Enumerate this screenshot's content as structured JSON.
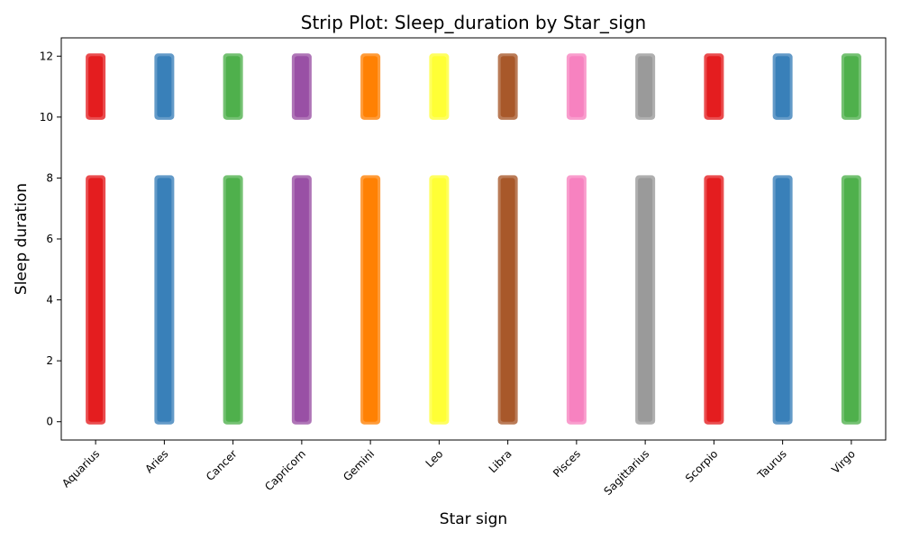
{
  "chart_data": {
    "type": "scatter",
    "subtype": "strip",
    "title": "Strip Plot: Sleep_duration by Star_sign",
    "xlabel": "Star sign",
    "ylabel": "Sleep duration",
    "categories": [
      "Aquarius",
      "Aries",
      "Cancer",
      "Capricorn",
      "Gemini",
      "Leo",
      "Libra",
      "Pisces",
      "Sagittarius",
      "Scorpio",
      "Taurus",
      "Virgo"
    ],
    "colors": [
      "#e41a1c",
      "#377eb8",
      "#4daf4a",
      "#984ea3",
      "#ff7f00",
      "#ffff33",
      "#a65628",
      "#f781bf",
      "#999999",
      "#e41a1c",
      "#377eb8",
      "#4daf4a"
    ],
    "value_ranges": [
      [
        0,
        8
      ],
      [
        10,
        12
      ]
    ],
    "ylim": [
      -0.6,
      12.6
    ],
    "yticks": [
      0,
      2,
      4,
      6,
      8,
      10,
      12
    ],
    "grid": false,
    "legend": "none"
  }
}
